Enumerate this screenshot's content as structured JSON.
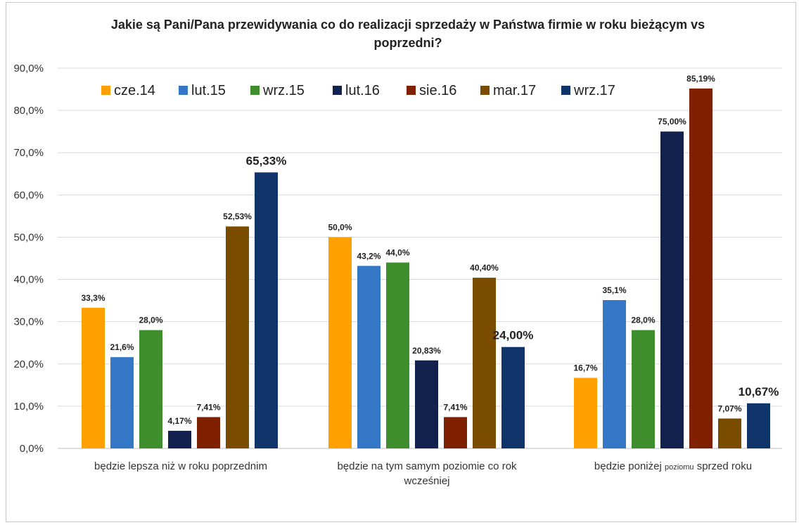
{
  "chart_data": {
    "type": "bar",
    "title": "Jakie są Pani/Pana  przewidywania co do realizacji sprzedaży w Państwa firmie w roku bieżącym vs poprzedni?",
    "title_lines": [
      "Jakie są Pani/Pana  przewidywania co do realizacji sprzedaży w Państwa firmie w roku bieżącym vs",
      "poprzedni?"
    ],
    "categories": [
      "będzie lepsza niż w roku poprzednim",
      "będzie na tym samym poziomie co rok wcześniej",
      "będzie poniżej poziomu sprzed roku"
    ],
    "category_lines": [
      [
        "będzie lepsza niż w roku poprzednim"
      ],
      [
        "będzie na tym samym poziomie co rok",
        "wcześniej"
      ],
      [
        "będzie poniżej ",
        "poziomu",
        " sprzed roku"
      ]
    ],
    "ylim": [
      0,
      90
    ],
    "y_ticks": [
      "0,0%",
      "10,0%",
      "20,0%",
      "30,0%",
      "40,0%",
      "50,0%",
      "60,0%",
      "70,0%",
      "80,0%",
      "90,0%"
    ],
    "grid": true,
    "legend_position": "top-left",
    "series": [
      {
        "name": "cze.14",
        "color": "#FFA000",
        "values": [
          33.3,
          50.0,
          16.7
        ],
        "labels": [
          "33,3%",
          "50,0%",
          "16,7%"
        ]
      },
      {
        "name": "lut.15",
        "color": "#3377C6",
        "values": [
          21.6,
          43.2,
          35.1
        ],
        "labels": [
          "21,6%",
          "43,2%",
          "35,1%"
        ]
      },
      {
        "name": "wrz.15",
        "color": "#3F8E2D",
        "values": [
          28.0,
          44.0,
          28.0
        ],
        "labels": [
          "28,0%",
          "44,0%",
          "28,0%"
        ]
      },
      {
        "name": "lut.16",
        "color": "#13214F",
        "values": [
          4.17,
          20.83,
          75.0
        ],
        "labels": [
          "4,17%",
          "20,83%",
          "75,00%"
        ]
      },
      {
        "name": "sie.16",
        "color": "#7F2100",
        "values": [
          7.41,
          7.41,
          85.19
        ],
        "labels": [
          "7,41%",
          "7,41%",
          "85,19%"
        ]
      },
      {
        "name": "mar.17",
        "color": "#7A4C00",
        "values": [
          52.53,
          40.4,
          7.07
        ],
        "labels": [
          "52,53%",
          "40,40%",
          "7,07%"
        ]
      },
      {
        "name": "wrz.17",
        "color": "#0F346A",
        "values": [
          65.33,
          24.0,
          10.67
        ],
        "labels": [
          "65,33%",
          "24,00%",
          "10,67%"
        ],
        "label_emphasis": true
      }
    ]
  }
}
